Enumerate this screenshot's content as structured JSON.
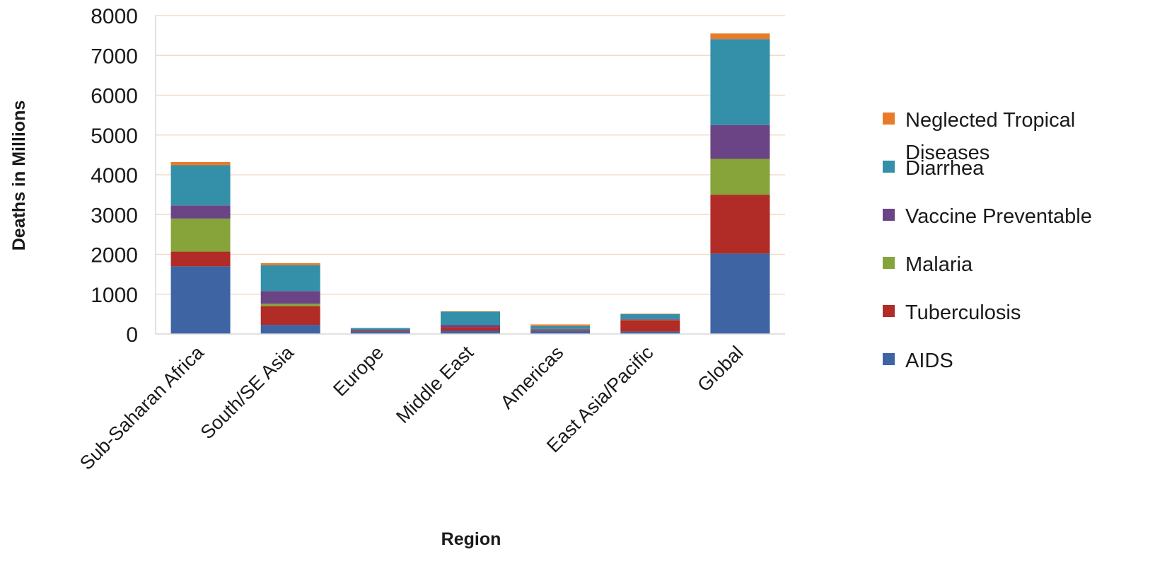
{
  "chart_data": {
    "type": "bar",
    "stacked": true,
    "title": "",
    "xlabel": "Region",
    "ylabel": "Deaths in Millions",
    "ylim": [
      0,
      8000
    ],
    "yticks": [
      0,
      1000,
      2000,
      3000,
      4000,
      5000,
      6000,
      7000,
      8000
    ],
    "grid": true,
    "legend_position": "right",
    "categories": [
      "Sub-Saharan Africa",
      "South/SE Asia",
      "Europe",
      "Middle East",
      "Americas",
      "East Asia/Pacific",
      "Global"
    ],
    "series": [
      {
        "name": "AIDS",
        "color": "#3f64a4",
        "values": [
          1700,
          230,
          60,
          80,
          80,
          60,
          2020
        ]
      },
      {
        "name": "Tuberculosis",
        "color": "#b12c26",
        "values": [
          370,
          470,
          20,
          90,
          20,
          290,
          1480
        ]
      },
      {
        "name": "Malaria",
        "color": "#86a43a",
        "values": [
          830,
          60,
          0,
          0,
          10,
          10,
          900
        ]
      },
      {
        "name": "Vaccine Preventable",
        "color": "#6b4486",
        "values": [
          330,
          320,
          20,
          60,
          20,
          20,
          850
        ]
      },
      {
        "name": "Diarrhea",
        "color": "#3490a8",
        "values": [
          1010,
          650,
          50,
          330,
          70,
          120,
          2160
        ]
      },
      {
        "name": "Neglected Tropical Diseases",
        "color": "#e87b2a",
        "values": [
          80,
          50,
          0,
          10,
          40,
          10,
          140
        ]
      }
    ],
    "legend_order": [
      "Neglected Tropical Diseases",
      "Diarrhea",
      "Vaccine Preventable",
      "Malaria",
      "Tuberculosis",
      "AIDS"
    ]
  }
}
